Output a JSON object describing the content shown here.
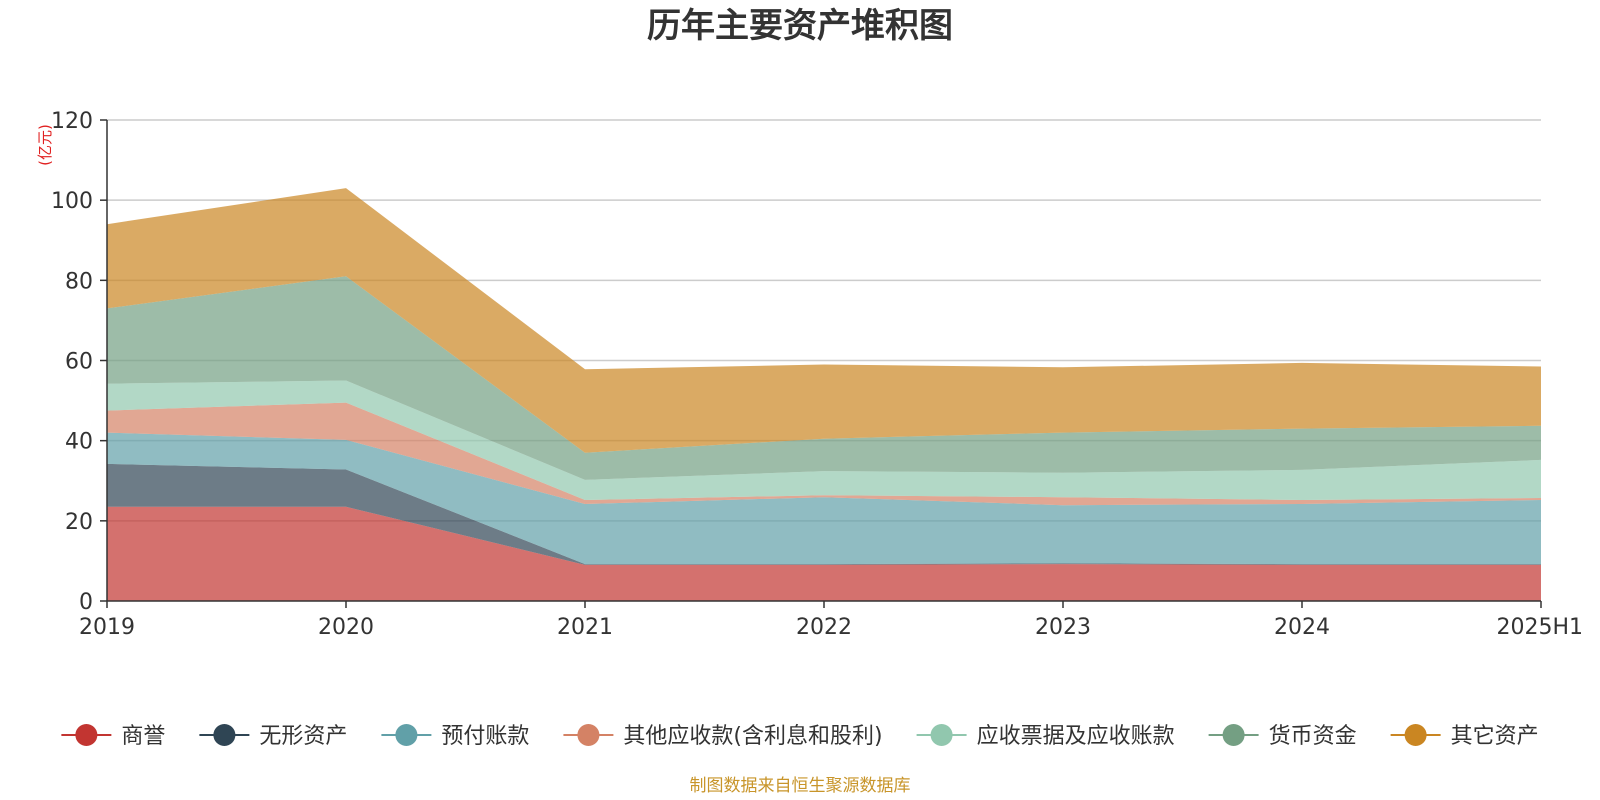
{
  "chart_data": {
    "type": "area",
    "stacked": true,
    "title": "历年主要资产堆积图",
    "unit_label": "(亿元)",
    "categories": [
      "2019",
      "2020",
      "2021",
      "2022",
      "2023",
      "2024",
      "2025H1"
    ],
    "ylim": [
      0,
      120
    ],
    "yticks": [
      0,
      20,
      40,
      60,
      80,
      100,
      120
    ],
    "grid": true,
    "legend_position": "bottom",
    "series": [
      {
        "name": "商誉",
        "color": "#c23531",
        "values": [
          23.5,
          23.5,
          9.0,
          9.0,
          9.2,
          9.0,
          9.0
        ]
      },
      {
        "name": "无形资产",
        "color": "#2f4554",
        "values": [
          10.7,
          9.3,
          0.2,
          0.2,
          0.2,
          0.2,
          0.2
        ]
      },
      {
        "name": "预付账款",
        "color": "#61a0a8",
        "values": [
          7.8,
          7.4,
          15.0,
          16.7,
          14.5,
          15.0,
          16.0
        ]
      },
      {
        "name": "其他应收款(含利息和股利)",
        "color": "#d48265",
        "values": [
          5.5,
          9.3,
          1.0,
          0.5,
          2.0,
          1.0,
          0.5
        ]
      },
      {
        "name": "应收票据及应收账款",
        "color": "#91c7ae",
        "values": [
          6.7,
          5.5,
          5.0,
          6.0,
          6.1,
          7.5,
          9.5
        ]
      },
      {
        "name": "货币资金",
        "color": "#749f83",
        "values": [
          18.8,
          26.0,
          6.8,
          8.1,
          10.0,
          10.3,
          8.5
        ]
      },
      {
        "name": "其它资产",
        "color": "#ca8622",
        "values": [
          21.0,
          22.0,
          20.8,
          18.5,
          16.3,
          16.4,
          14.8
        ]
      }
    ],
    "source_note": "制图数据来自恒生聚源数据库"
  }
}
